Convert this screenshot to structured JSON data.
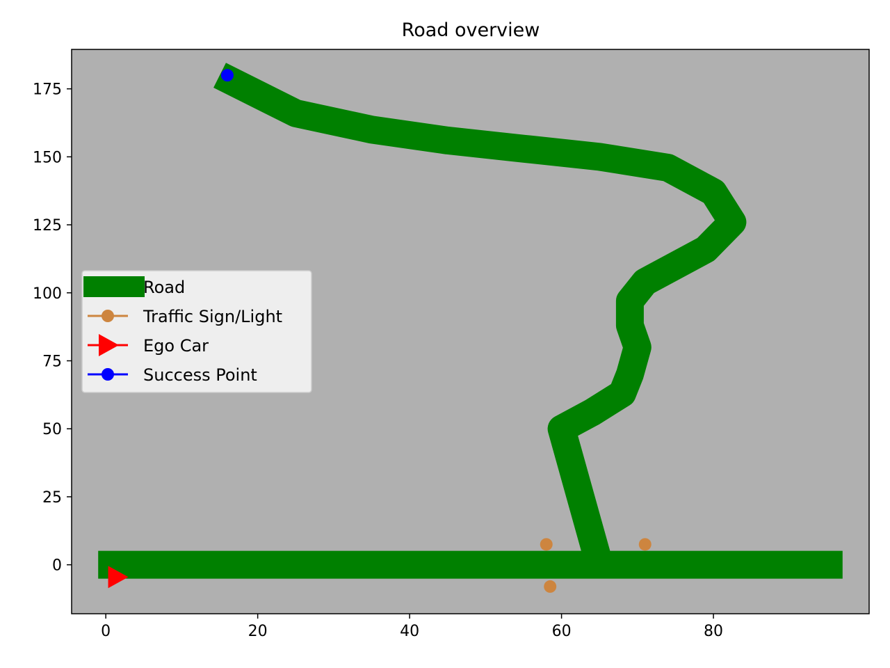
{
  "chart_data": {
    "type": "line",
    "title": "Road overview",
    "xlabel": "",
    "ylabel": "",
    "xlim": [
      -4.5,
      100.5
    ],
    "ylim": [
      -18,
      189.5
    ],
    "x_ticks": [
      0,
      20,
      40,
      60,
      80
    ],
    "y_ticks": [
      0,
      25,
      50,
      75,
      100,
      125,
      150,
      175
    ],
    "grid": false,
    "background_color": "#b0b0b0",
    "legend_position": "center-left",
    "series": [
      {
        "name": "Road",
        "kind": "road",
        "color": "#008000",
        "segments": [
          [
            [
              -1,
              0
            ],
            [
              97,
              0
            ]
          ],
          [
            [
              65,
              0
            ],
            [
              60,
              50
            ],
            [
              64,
              56
            ],
            [
              68,
              63
            ],
            [
              69,
              70
            ],
            [
              70,
              80
            ],
            [
              69,
              88
            ],
            [
              69,
              97
            ],
            [
              71,
              104
            ],
            [
              75,
              110
            ],
            [
              79,
              116
            ],
            [
              82.5,
              126
            ],
            [
              80,
              137
            ],
            [
              74,
              146
            ],
            [
              65,
              150
            ],
            [
              55,
              153
            ],
            [
              45,
              156
            ],
            [
              35,
              160
            ],
            [
              25,
              166
            ],
            [
              15,
              180
            ]
          ]
        ]
      },
      {
        "name": "Traffic Sign/Light",
        "kind": "points",
        "color": "#cd853f",
        "points": [
          [
            58,
            7.5
          ],
          [
            71,
            7.5
          ],
          [
            58.5,
            -8
          ]
        ]
      },
      {
        "name": "Ego Car",
        "kind": "marker",
        "color": "#ff0000",
        "points": [
          [
            1.5,
            -4.5
          ]
        ]
      },
      {
        "name": "Success Point",
        "kind": "points",
        "color": "#0000ff",
        "points": [
          [
            16,
            180
          ]
        ]
      }
    ]
  }
}
